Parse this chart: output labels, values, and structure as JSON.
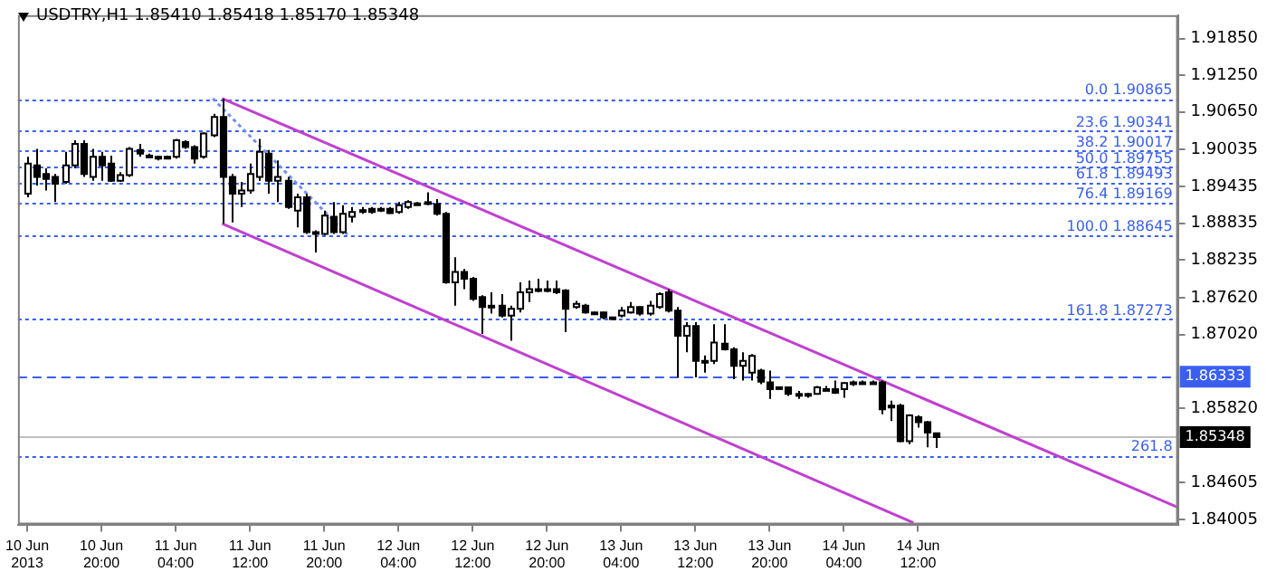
{
  "chart_data": {
    "type": "candlestick",
    "title": "USDTRY,H1  1.85410 1.85418 1.85170 1.85348",
    "x": [
      "2013-06-10T12:00",
      "2013-06-10T13:00",
      "2013-06-10T14:00",
      "2013-06-10T15:00",
      "2013-06-10T16:00",
      "2013-06-10T17:00",
      "2013-06-10T18:00",
      "2013-06-10T19:00",
      "2013-06-10T20:00",
      "2013-06-10T21:00",
      "2013-06-10T22:00",
      "2013-06-10T23:00",
      "2013-06-11T00:00",
      "2013-06-11T01:00",
      "2013-06-11T02:00",
      "2013-06-11T03:00",
      "2013-06-11T04:00",
      "2013-06-11T05:00",
      "2013-06-11T06:00",
      "2013-06-11T07:00",
      "2013-06-11T08:00",
      "2013-06-11T09:00",
      "2013-06-11T10:00",
      "2013-06-11T11:00",
      "2013-06-11T12:00",
      "2013-06-11T13:00",
      "2013-06-11T14:00",
      "2013-06-11T15:00",
      "2013-06-11T16:00",
      "2013-06-11T17:00",
      "2013-06-11T18:00",
      "2013-06-11T19:00",
      "2013-06-11T20:00",
      "2013-06-11T21:00",
      "2013-06-11T22:00",
      "2013-06-11T23:00",
      "2013-06-12T00:00",
      "2013-06-12T01:00",
      "2013-06-12T02:00",
      "2013-06-12T03:00",
      "2013-06-12T04:00",
      "2013-06-12T05:00",
      "2013-06-12T06:00",
      "2013-06-12T07:00",
      "2013-06-12T08:00",
      "2013-06-12T09:00",
      "2013-06-12T10:00",
      "2013-06-12T11:00",
      "2013-06-12T12:00",
      "2013-06-12T13:00",
      "2013-06-12T14:00",
      "2013-06-12T15:00",
      "2013-06-12T16:00",
      "2013-06-12T17:00",
      "2013-06-12T18:00",
      "2013-06-12T19:00",
      "2013-06-12T20:00",
      "2013-06-12T21:00",
      "2013-06-12T22:00",
      "2013-06-12T23:00",
      "2013-06-13T00:00",
      "2013-06-13T01:00",
      "2013-06-13T02:00",
      "2013-06-13T03:00",
      "2013-06-13T04:00",
      "2013-06-13T05:00",
      "2013-06-13T06:00",
      "2013-06-13T07:00",
      "2013-06-13T08:00",
      "2013-06-13T09:00",
      "2013-06-13T10:00",
      "2013-06-13T11:00",
      "2013-06-13T12:00",
      "2013-06-13T13:00",
      "2013-06-13T14:00",
      "2013-06-13T15:00",
      "2013-06-13T16:00",
      "2013-06-13T17:00",
      "2013-06-13T18:00",
      "2013-06-13T19:00",
      "2013-06-13T20:00",
      "2013-06-13T21:00",
      "2013-06-13T22:00",
      "2013-06-13T23:00",
      "2013-06-14T00:00",
      "2013-06-14T01:00",
      "2013-06-14T02:00",
      "2013-06-14T03:00",
      "2013-06-14T04:00",
      "2013-06-14T05:00",
      "2013-06-14T06:00",
      "2013-06-14T07:00",
      "2013-06-14T08:00",
      "2013-06-14T09:00",
      "2013-06-14T10:00",
      "2013-06-14T11:00",
      "2013-06-14T12:00",
      "2013-06-14T13:00",
      "2013-06-14T14:00"
    ],
    "ohlc": [
      [
        1.8932,
        1.8992,
        1.8926,
        1.8981
      ],
      [
        1.8978,
        1.9005,
        1.8945,
        1.8959
      ],
      [
        1.8964,
        1.8973,
        1.8937,
        1.8956
      ],
      [
        1.8959,
        1.8964,
        1.8918,
        1.8948
      ],
      [
        1.8951,
        1.9,
        1.8948,
        1.8978
      ],
      [
        1.8978,
        1.9019,
        1.8973,
        1.9013
      ],
      [
        1.9013,
        1.9019,
        1.8959,
        1.8964
      ],
      [
        1.8959,
        1.9005,
        1.8953,
        1.8992
      ],
      [
        1.8992,
        1.9,
        1.8953,
        1.8978
      ],
      [
        1.8981,
        1.8994,
        1.8951,
        1.8953
      ],
      [
        1.8953,
        1.8967,
        1.8951,
        1.8962
      ],
      [
        1.8962,
        1.9008,
        1.8959,
        1.9005
      ],
      [
        1.9003,
        1.9013,
        1.8992,
        1.8997
      ],
      [
        1.8994,
        1.8997,
        1.8992,
        1.8994
      ],
      [
        1.8992,
        1.8994,
        1.8986,
        1.8989
      ],
      [
        1.8992,
        1.8994,
        1.8989,
        1.8991
      ],
      [
        1.8992,
        1.9021,
        1.8989,
        1.9019
      ],
      [
        1.9016,
        1.9019,
        1.9005,
        1.9008
      ],
      [
        1.9008,
        1.9011,
        1.8981,
        1.8989
      ],
      [
        1.8992,
        1.9032,
        1.8989,
        1.903
      ],
      [
        1.9027,
        1.9062,
        1.9024,
        1.9057
      ],
      [
        1.9057,
        1.9087,
        1.8883,
        1.8959
      ],
      [
        1.8959,
        1.8964,
        1.8885,
        1.8932
      ],
      [
        1.8932,
        1.8951,
        1.891,
        1.8937
      ],
      [
        1.8937,
        1.8981,
        1.8932,
        1.8964
      ],
      [
        1.8959,
        1.9021,
        1.8953,
        1.9
      ],
      [
        1.8997,
        1.9003,
        1.8932,
        1.8953
      ],
      [
        1.8953,
        1.8986,
        1.8918,
        1.8959
      ],
      [
        1.8953,
        1.8959,
        1.8907,
        1.891
      ],
      [
        1.8904,
        1.8932,
        1.8877,
        1.8926
      ],
      [
        1.8926,
        1.8932,
        1.8866,
        1.8869
      ],
      [
        1.8869,
        1.8872,
        1.8836,
        1.8866
      ],
      [
        1.8866,
        1.8904,
        1.8864,
        1.8896
      ],
      [
        1.8894,
        1.8918,
        1.8866,
        1.8869
      ],
      [
        1.8869,
        1.8913,
        1.8866,
        1.8899
      ],
      [
        1.8894,
        1.891,
        1.8885,
        1.8902
      ],
      [
        1.8904,
        1.891,
        1.8899,
        1.8905
      ],
      [
        1.8907,
        1.891,
        1.8899,
        1.8902
      ],
      [
        1.8904,
        1.891,
        1.8902,
        1.8907
      ],
      [
        1.8907,
        1.891,
        1.8899,
        1.89
      ],
      [
        1.8902,
        1.8918,
        1.8899,
        1.8913
      ],
      [
        1.891,
        1.8921,
        1.8907,
        1.8918
      ],
      [
        1.8915,
        1.8918,
        1.8913,
        1.8916
      ],
      [
        1.8918,
        1.8934,
        1.8913,
        1.8917
      ],
      [
        1.8915,
        1.8923,
        1.8896,
        1.8899
      ],
      [
        1.8899,
        1.8902,
        1.8785,
        1.8787
      ],
      [
        1.8787,
        1.8828,
        1.8749,
        1.8804
      ],
      [
        1.8804,
        1.8809,
        1.8776,
        1.8793
      ],
      [
        1.8793,
        1.8796,
        1.8757,
        1.876
      ],
      [
        1.8763,
        1.8766,
        1.8703,
        1.8747
      ],
      [
        1.8747,
        1.8771,
        1.8736,
        1.8749
      ],
      [
        1.8749,
        1.8768,
        1.873,
        1.8733
      ],
      [
        1.8733,
        1.8749,
        1.8692,
        1.8744
      ],
      [
        1.8744,
        1.8787,
        1.8738,
        1.8771
      ],
      [
        1.8771,
        1.879,
        1.8755,
        1.8776
      ],
      [
        1.8776,
        1.8793,
        1.8771,
        1.8775
      ],
      [
        1.8776,
        1.879,
        1.8771,
        1.8774
      ],
      [
        1.8776,
        1.879,
        1.8768,
        1.8771
      ],
      [
        1.8774,
        1.8776,
        1.8706,
        1.8744
      ],
      [
        1.8747,
        1.8757,
        1.8744,
        1.8752
      ],
      [
        1.8749,
        1.8752,
        1.8736,
        1.8738
      ],
      [
        1.8738,
        1.8739,
        1.8737,
        1.8738
      ],
      [
        1.8738,
        1.8739,
        1.8727,
        1.873
      ],
      [
        1.873,
        1.8731,
        1.8727,
        1.8729
      ],
      [
        1.8733,
        1.8747,
        1.873,
        1.8741
      ],
      [
        1.8738,
        1.8755,
        1.8736,
        1.8747
      ],
      [
        1.8747,
        1.8748,
        1.8733,
        1.8736
      ],
      [
        1.8736,
        1.8757,
        1.8733,
        1.8749
      ],
      [
        1.8747,
        1.8771,
        1.8744,
        1.8768
      ],
      [
        1.8771,
        1.8776,
        1.8738,
        1.8741
      ],
      [
        1.8741,
        1.8747,
        1.8632,
        1.87
      ],
      [
        1.87,
        1.8722,
        1.8673,
        1.8716
      ],
      [
        1.8716,
        1.8722,
        1.8632,
        1.8659
      ],
      [
        1.8659,
        1.8668,
        1.864,
        1.8658
      ],
      [
        1.8659,
        1.8719,
        1.8654,
        1.8689
      ],
      [
        1.8687,
        1.8719,
        1.8676,
        1.8678
      ],
      [
        1.8678,
        1.8681,
        1.8629,
        1.8651
      ],
      [
        1.8651,
        1.8673,
        1.8627,
        1.8659
      ],
      [
        1.864,
        1.867,
        1.8627,
        1.8667
      ],
      [
        1.8643,
        1.8646,
        1.8621,
        1.8625
      ],
      [
        1.8624,
        1.8643,
        1.8597,
        1.8613
      ],
      [
        1.8616,
        1.8617,
        1.8613,
        1.8615
      ],
      [
        1.8616,
        1.8617,
        1.8602,
        1.8605
      ],
      [
        1.8605,
        1.861,
        1.8597,
        1.8604
      ],
      [
        1.8605,
        1.8607,
        1.8599,
        1.8604
      ],
      [
        1.8605,
        1.8618,
        1.8604,
        1.8616
      ],
      [
        1.8613,
        1.8618,
        1.861,
        1.8612
      ],
      [
        1.8613,
        1.8627,
        1.8605,
        1.8607
      ],
      [
        1.8613,
        1.8624,
        1.8599,
        1.8623
      ],
      [
        1.8624,
        1.8627,
        1.8618,
        1.8623
      ],
      [
        1.8624,
        1.8627,
        1.8621,
        1.8623
      ],
      [
        1.8624,
        1.8627,
        1.8621,
        1.8624
      ],
      [
        1.8624,
        1.8627,
        1.8572,
        1.858
      ],
      [
        1.8586,
        1.8594,
        1.8561,
        1.8583
      ],
      [
        1.8586,
        1.8589,
        1.8526,
        1.8528
      ],
      [
        1.8528,
        1.8572,
        1.8523,
        1.857
      ],
      [
        1.8567,
        1.857,
        1.855,
        1.8559
      ],
      [
        1.8559,
        1.8561,
        1.8518,
        1.8542
      ],
      [
        1.8541,
        1.85418,
        1.8517,
        1.85348
      ]
    ],
    "series": [
      {
        "type": "line",
        "x": [
          "2013-06-11T09:00",
          "2013-06-15T16:00"
        ],
        "values": [
          1.9087,
          1.842
        ],
        "color": "#c040d0",
        "line_style": "solid"
      },
      {
        "type": "line",
        "x": [
          "2013-06-11T09:00",
          "2013-06-14T11:30"
        ],
        "values": [
          1.8883,
          1.8395
        ],
        "color": "#c040d0",
        "line_style": "solid"
      },
      {
        "type": "line",
        "x": [
          "2013-06-11T08:00",
          "2013-06-11T22:30"
        ],
        "values": [
          1.9087,
          1.8865
        ],
        "color": "#6f8ff5",
        "line_style": "dotted"
      }
    ],
    "ref_lines": [
      {
        "axis": "y",
        "value": 1.90865,
        "label": "0.0 1.90865",
        "color": "#3a5ff0",
        "line_style": "dotted"
      },
      {
        "axis": "y",
        "value": 1.90341,
        "label": "23.6 1.90341",
        "color": "#3a5ff0",
        "line_style": "dotted"
      },
      {
        "axis": "y",
        "value": 1.90017,
        "label": "38.2 1.90017",
        "color": "#3a5ff0",
        "line_style": "dotted"
      },
      {
        "axis": "y",
        "value": 1.89755,
        "label": "50.0 1.89755",
        "color": "#3a5ff0",
        "line_style": "dotted"
      },
      {
        "axis": "y",
        "value": 1.89493,
        "label": "61.8 1.89493",
        "color": "#3a5ff0",
        "line_style": "dotted"
      },
      {
        "axis": "y",
        "value": 1.89169,
        "label": "76.4 1.89169",
        "color": "#3a5ff0",
        "line_style": "dotted"
      },
      {
        "axis": "y",
        "value": 1.88645,
        "label": "100.0 1.88645",
        "color": "#3a5ff0",
        "line_style": "dotted"
      },
      {
        "axis": "y",
        "value": 1.87273,
        "label": "161.8 1.87273",
        "color": "#3a5ff0",
        "line_style": "dotted"
      },
      {
        "axis": "y",
        "value": 1.8505,
        "color": "#3a5ff0",
        "line_style": "dotted"
      },
      {
        "axis": "y",
        "value": 1.86333,
        "label": "1.86333",
        "color": "#3a5ff0",
        "line_style": "dashed"
      },
      {
        "axis": "y",
        "value": 1.85348,
        "label": "1.85348",
        "color": "#c0c0c0",
        "line_style": "solid"
      }
    ],
    "annotations": [
      {
        "text": "261.8",
        "x": "2013-06-15T16:00",
        "y": 1.8505
      }
    ],
    "xlim": [
      "2013-06-10T11:00",
      "2013-06-15T16:00"
    ],
    "xticks": [
      {
        "value": "2013-06-10T12:00",
        "label": "10 Jun 2013"
      },
      {
        "value": "2013-06-10T20:00",
        "label": "10 Jun 20:00"
      },
      {
        "value": "2013-06-11T04:00",
        "label": "11 Jun 04:00"
      },
      {
        "value": "2013-06-11T12:00",
        "label": "11 Jun 12:00"
      },
      {
        "value": "2013-06-11T20:00",
        "label": "11 Jun 20:00"
      },
      {
        "value": "2013-06-12T04:00",
        "label": "12 Jun 04:00"
      },
      {
        "value": "2013-06-12T12:00",
        "label": "12 Jun 12:00"
      },
      {
        "value": "2013-06-12T20:00",
        "label": "12 Jun 20:00"
      },
      {
        "value": "2013-06-13T04:00",
        "label": "13 Jun 04:00"
      },
      {
        "value": "2013-06-13T12:00",
        "label": "13 Jun 12:00"
      },
      {
        "value": "2013-06-13T20:00",
        "label": "13 Jun 20:00"
      },
      {
        "value": "2013-06-14T04:00",
        "label": "14 Jun 04:00"
      },
      {
        "value": "2013-06-14T12:00",
        "label": "14 Jun 12:00"
      }
    ],
    "ylim": [
      1.8392,
      1.9223
    ],
    "yticks": [
      {
        "value": 1.9185,
        "label": "1.91850"
      },
      {
        "value": 1.9125,
        "label": "1.91250"
      },
      {
        "value": 1.9065,
        "label": "1.90650"
      },
      1.90035,
      1.89435,
      1.88835,
      1.88235,
      {
        "value": 1.8762,
        "label": "1.87620"
      },
      {
        "value": 1.8702,
        "label": "1.87020"
      },
      {
        "value": 1.8582,
        "label": "1.85820"
      },
      1.84605,
      1.84005
    ],
    "grid": false,
    "legend": false,
    "marker": "none"
  }
}
